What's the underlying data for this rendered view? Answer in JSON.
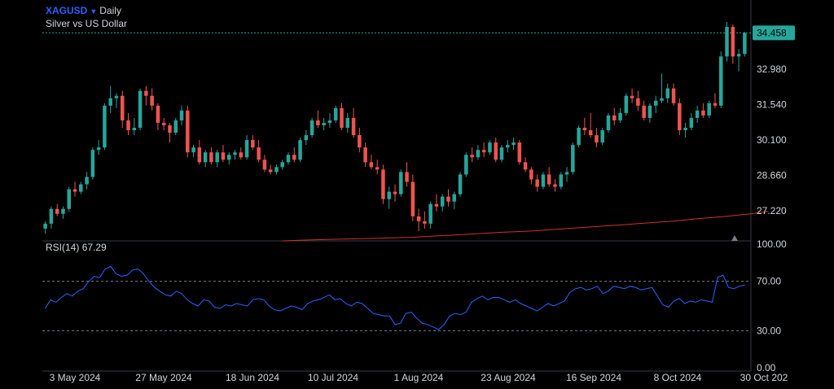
{
  "header": {
    "symbol": "XAGUSD",
    "timeframe": "Daily",
    "description": "Silver vs US Dollar"
  },
  "rsi_panel": {
    "label": "RSI(14)",
    "value": "67.29"
  },
  "colors": {
    "up": "#26a69a",
    "down": "#ef5350",
    "ma": "#d32f2f",
    "rsi": "#2962ff",
    "last_price_bg": "#26a69a",
    "grid": "#2a2e39",
    "text": "#d1d4dc"
  },
  "chart_data": [
    {
      "type": "candlestick",
      "title": "XAGUSD Daily",
      "ylim": [
        26.0,
        35.2
      ],
      "y_ticks": [
        "32.980",
        "31.540",
        "30.100",
        "28.660",
        "27.220"
      ],
      "last_price": "34.458",
      "x_ticks": [
        "3 May 2024",
        "27 May 2024",
        "18 Jun 2024",
        "10 Jul 2024",
        "1 Aug 2024",
        "23 Aug 2024",
        "16 Sep 2024",
        "8 Oct 2024",
        "30 Oct 202"
      ],
      "ohlc": [
        [
          26.5,
          26.8,
          26.3,
          26.7
        ],
        [
          26.7,
          27.4,
          26.5,
          27.3
        ],
        [
          27.3,
          27.5,
          27.0,
          27.1
        ],
        [
          27.1,
          27.4,
          26.9,
          27.3
        ],
        [
          27.3,
          28.2,
          27.2,
          28.1
        ],
        [
          28.1,
          28.4,
          27.8,
          28.0
        ],
        [
          28.0,
          28.4,
          27.9,
          28.3
        ],
        [
          28.3,
          28.8,
          28.1,
          28.6
        ],
        [
          28.6,
          29.8,
          28.5,
          29.7
        ],
        [
          29.7,
          30.1,
          29.5,
          29.8
        ],
        [
          29.8,
          31.6,
          29.7,
          31.5
        ],
        [
          31.5,
          32.3,
          31.2,
          31.8
        ],
        [
          31.8,
          32.0,
          31.4,
          31.9
        ],
        [
          31.9,
          32.1,
          30.6,
          30.9
        ],
        [
          30.9,
          31.2,
          30.3,
          30.5
        ],
        [
          30.5,
          31.0,
          30.3,
          30.6
        ],
        [
          30.6,
          32.2,
          30.5,
          32.1
        ],
        [
          32.1,
          32.3,
          31.5,
          31.9
        ],
        [
          31.9,
          32.2,
          31.3,
          31.5
        ],
        [
          31.5,
          31.6,
          30.5,
          30.8
        ],
        [
          30.8,
          31.0,
          30.5,
          30.7
        ],
        [
          30.7,
          30.8,
          30.0,
          30.4
        ],
        [
          30.4,
          31.0,
          30.3,
          30.9
        ],
        [
          30.9,
          31.5,
          30.7,
          31.3
        ],
        [
          31.3,
          31.5,
          29.4,
          29.6
        ],
        [
          29.6,
          29.9,
          29.4,
          29.8
        ],
        [
          29.8,
          30.1,
          29.1,
          29.2
        ],
        [
          29.2,
          29.7,
          29.0,
          29.6
        ],
        [
          29.6,
          29.8,
          29.1,
          29.2
        ],
        [
          29.2,
          29.7,
          29.0,
          29.6
        ],
        [
          29.6,
          29.9,
          29.2,
          29.3
        ],
        [
          29.3,
          29.6,
          29.1,
          29.5
        ],
        [
          29.5,
          29.7,
          29.3,
          29.6
        ],
        [
          29.6,
          29.8,
          29.3,
          29.4
        ],
        [
          29.4,
          30.3,
          29.3,
          30.1
        ],
        [
          30.1,
          30.3,
          29.7,
          29.8
        ],
        [
          29.8,
          30.1,
          29.2,
          29.3
        ],
        [
          29.3,
          29.5,
          28.8,
          28.9
        ],
        [
          28.9,
          29.1,
          28.7,
          28.8
        ],
        [
          28.8,
          29.1,
          28.7,
          29.0
        ],
        [
          29.0,
          29.3,
          28.9,
          29.2
        ],
        [
          29.2,
          29.6,
          29.1,
          29.5
        ],
        [
          29.5,
          29.8,
          29.2,
          29.3
        ],
        [
          29.3,
          30.2,
          29.2,
          30.1
        ],
        [
          30.1,
          30.5,
          29.9,
          30.3
        ],
        [
          30.3,
          31.0,
          30.2,
          30.9
        ],
        [
          30.9,
          31.3,
          30.6,
          30.7
        ],
        [
          30.7,
          31.0,
          30.5,
          30.8
        ],
        [
          30.8,
          31.2,
          30.6,
          30.9
        ],
        [
          30.9,
          31.5,
          30.8,
          31.4
        ],
        [
          31.4,
          31.6,
          30.5,
          30.6
        ],
        [
          30.6,
          31.2,
          30.4,
          31.0
        ],
        [
          31.0,
          31.4,
          30.2,
          30.3
        ],
        [
          30.3,
          30.6,
          29.6,
          29.8
        ],
        [
          29.8,
          30.0,
          29.0,
          29.2
        ],
        [
          29.2,
          29.5,
          28.9,
          29.0
        ],
        [
          29.0,
          29.3,
          28.7,
          28.9
        ],
        [
          28.9,
          29.1,
          27.5,
          27.7
        ],
        [
          27.7,
          28.2,
          27.3,
          28.0
        ],
        [
          28.0,
          28.3,
          27.6,
          27.9
        ],
        [
          27.9,
          28.9,
          27.8,
          28.8
        ],
        [
          28.8,
          29.2,
          28.2,
          28.4
        ],
        [
          28.4,
          28.7,
          26.8,
          27.0
        ],
        [
          27.0,
          27.3,
          26.4,
          26.8
        ],
        [
          26.8,
          27.2,
          26.5,
          26.7
        ],
        [
          26.7,
          27.6,
          26.5,
          27.5
        ],
        [
          27.5,
          27.9,
          27.2,
          27.4
        ],
        [
          27.4,
          27.9,
          27.2,
          27.8
        ],
        [
          27.8,
          28.1,
          27.4,
          27.6
        ],
        [
          27.6,
          28.0,
          27.3,
          27.9
        ],
        [
          27.9,
          28.8,
          27.8,
          28.7
        ],
        [
          28.7,
          29.6,
          28.6,
          29.5
        ],
        [
          29.5,
          29.8,
          29.2,
          29.4
        ],
        [
          29.4,
          29.9,
          29.3,
          29.7
        ],
        [
          29.7,
          30.0,
          29.4,
          29.6
        ],
        [
          29.6,
          30.1,
          29.5,
          30.0
        ],
        [
          30.0,
          30.2,
          29.2,
          29.3
        ],
        [
          29.3,
          29.9,
          29.2,
          29.8
        ],
        [
          29.8,
          30.1,
          29.6,
          29.9
        ],
        [
          29.9,
          30.2,
          29.7,
          30.0
        ],
        [
          30.0,
          30.1,
          29.1,
          29.2
        ],
        [
          29.2,
          29.4,
          28.8,
          28.9
        ],
        [
          28.9,
          29.0,
          28.3,
          28.5
        ],
        [
          28.5,
          28.7,
          28.0,
          28.2
        ],
        [
          28.2,
          28.8,
          28.1,
          28.7
        ],
        [
          28.7,
          29.0,
          28.2,
          28.3
        ],
        [
          28.3,
          28.5,
          28.0,
          28.2
        ],
        [
          28.2,
          28.8,
          28.1,
          28.7
        ],
        [
          28.7,
          29.0,
          28.4,
          28.8
        ],
        [
          28.8,
          30.0,
          28.7,
          29.9
        ],
        [
          29.9,
          30.7,
          29.8,
          30.6
        ],
        [
          30.6,
          31.0,
          30.3,
          30.5
        ],
        [
          30.5,
          31.2,
          30.2,
          30.3
        ],
        [
          30.3,
          30.6,
          29.8,
          30.0
        ],
        [
          30.0,
          30.6,
          29.9,
          30.5
        ],
        [
          30.5,
          31.2,
          30.4,
          31.1
        ],
        [
          31.1,
          31.4,
          30.7,
          30.9
        ],
        [
          30.9,
          31.4,
          30.8,
          31.2
        ],
        [
          31.2,
          32.0,
          31.1,
          31.9
        ],
        [
          31.9,
          32.2,
          31.6,
          31.8
        ],
        [
          31.8,
          32.1,
          31.3,
          31.5
        ],
        [
          31.5,
          31.7,
          30.9,
          31.0
        ],
        [
          31.0,
          31.6,
          30.8,
          31.5
        ],
        [
          31.5,
          31.9,
          31.2,
          31.7
        ],
        [
          31.7,
          32.8,
          31.6,
          31.8
        ],
        [
          31.8,
          32.4,
          31.6,
          32.2
        ],
        [
          32.2,
          32.4,
          31.5,
          31.6
        ],
        [
          31.6,
          31.8,
          30.3,
          30.5
        ],
        [
          30.5,
          30.8,
          30.2,
          30.6
        ],
        [
          30.6,
          31.2,
          30.5,
          31.0
        ],
        [
          31.0,
          31.5,
          30.8,
          31.3
        ],
        [
          31.3,
          31.6,
          31.0,
          31.1
        ],
        [
          31.1,
          31.7,
          31.0,
          31.6
        ],
        [
          31.6,
          32.0,
          31.4,
          31.5
        ],
        [
          31.5,
          33.7,
          31.4,
          33.5
        ],
        [
          33.5,
          34.9,
          33.3,
          34.7
        ],
        [
          34.7,
          34.8,
          33.2,
          33.5
        ],
        [
          33.5,
          33.8,
          32.9,
          33.6
        ],
        [
          33.6,
          34.5,
          33.5,
          34.45
        ]
      ],
      "ma_line": [
        [
          40,
          26.0
        ],
        [
          46,
          26.05
        ],
        [
          55,
          26.1
        ],
        [
          62,
          26.15
        ],
        [
          70,
          26.25
        ],
        [
          77,
          26.35
        ],
        [
          82,
          26.4
        ],
        [
          88,
          26.5
        ],
        [
          94,
          26.6
        ],
        [
          100,
          26.7
        ],
        [
          106,
          26.8
        ],
        [
          110,
          26.9
        ],
        [
          115,
          27.0
        ],
        [
          119,
          27.1
        ],
        [
          122,
          27.2
        ]
      ]
    },
    {
      "type": "line",
      "title": "RSI(14) 67.29",
      "ylim": [
        0,
        100
      ],
      "y_ticks": [
        "100.00",
        "70.00",
        "30.00",
        "0.00"
      ],
      "levels": [
        70,
        30
      ],
      "values": [
        48,
        55,
        53,
        57,
        60,
        58,
        62,
        64,
        70,
        74,
        73,
        80,
        82,
        76,
        74,
        75,
        79,
        80,
        76,
        70,
        65,
        62,
        59,
        58,
        62,
        60,
        55,
        52,
        50,
        55,
        54,
        49,
        48,
        51,
        50,
        52,
        51,
        50,
        55,
        56,
        55,
        50,
        47,
        46,
        48,
        50,
        49,
        47,
        52,
        54,
        55,
        57,
        59,
        55,
        56,
        52,
        50,
        53,
        52,
        48,
        44,
        43,
        42,
        42,
        35,
        36,
        44,
        45,
        40,
        36,
        35,
        33,
        31,
        35,
        42,
        44,
        43,
        45,
        53,
        56,
        58,
        55,
        57,
        57,
        55,
        53,
        55,
        52,
        50,
        48,
        46,
        49,
        52,
        50,
        52,
        54,
        61,
        64,
        65,
        63,
        64,
        66,
        60,
        62,
        66,
        65,
        64,
        66,
        65,
        63,
        64,
        65,
        58,
        51,
        49,
        54,
        56,
        52,
        54,
        53,
        55,
        54,
        53,
        73,
        75,
        65,
        64,
        66,
        67
      ]
    }
  ]
}
